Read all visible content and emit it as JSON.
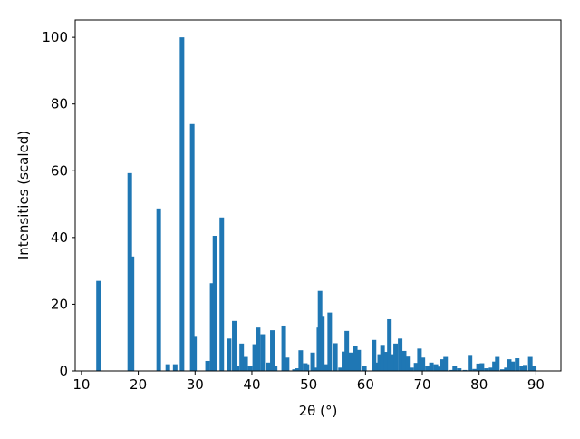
{
  "chart_data": {
    "type": "bar",
    "xlabel": "2θ (°)",
    "ylabel": "Intensities (scaled)",
    "color": "#1f77b4",
    "x": [
      13.0,
      18.5,
      18.9,
      23.6,
      25.2,
      26.5,
      27.7,
      29.5,
      29.9,
      32.2,
      33.0,
      33.5,
      34.7,
      36.0,
      36.9,
      37.4,
      38.2,
      38.9,
      39.7,
      40.5,
      41.1,
      41.9,
      42.9,
      43.6,
      44.1,
      45.6,
      46.2,
      47.5,
      48.0,
      48.6,
      49.4,
      49.7,
      50.7,
      51.3,
      51.8,
      52.0,
      52.4,
      53.1,
      53.7,
      54.7,
      55.6,
      56.2,
      56.7,
      57.4,
      58.2,
      58.8,
      59.8,
      61.5,
      62.0,
      62.5,
      63.0,
      63.6,
      64.2,
      64.9,
      65.3,
      66.1,
      66.8,
      67.4,
      68.1,
      68.9,
      69.5,
      70.1,
      70.9,
      71.6,
      72.4,
      72.8,
      73.5,
      74.1,
      75.2,
      75.7,
      76.5,
      77.5,
      78.4,
      79.2,
      79.9,
      80.5,
      81.3,
      82.1,
      82.7,
      83.2,
      84.1,
      84.8,
      85.3,
      85.9,
      86.7,
      87.5,
      88.1,
      89.0,
      89.7
    ],
    "values": [
      27,
      59.3,
      34.3,
      48.7,
      2,
      2,
      100,
      74,
      10.5,
      3,
      26.3,
      40.5,
      46,
      9.7,
      15,
      1.5,
      8.2,
      4.2,
      1.5,
      8,
      13,
      11,
      2.5,
      12.2,
      1.5,
      13.6,
      4,
      0.5,
      0.8,
      6.2,
      2.3,
      2,
      5.5,
      1,
      13,
      24,
      16.5,
      2,
      17.5,
      8.3,
      1,
      5.8,
      12,
      5.5,
      7.5,
      6.3,
      1.5,
      9.3,
      2.5,
      5,
      7.8,
      5.7,
      15.5,
      5,
      8.2,
      9.7,
      6,
      4.3,
      1,
      2.4,
      6.7,
      4,
      1.5,
      2.5,
      2,
      1.3,
      3.5,
      4.2,
      0.3,
      1.6,
      0.8,
      0.3,
      4.8,
      0.6,
      2.2,
      2.3,
      0.8,
      1,
      2.8,
      4.2,
      0.5,
      1,
      3.5,
      2.8,
      3.8,
      1.4,
      1.8,
      4.2,
      1.5
    ],
    "xlim": [
      8.9,
      94.4
    ],
    "ylim": [
      0,
      105.2
    ],
    "xticks": [
      10,
      20,
      30,
      40,
      50,
      60,
      70,
      80,
      90
    ],
    "yticks": [
      0,
      20,
      40,
      60,
      80,
      100
    ]
  }
}
